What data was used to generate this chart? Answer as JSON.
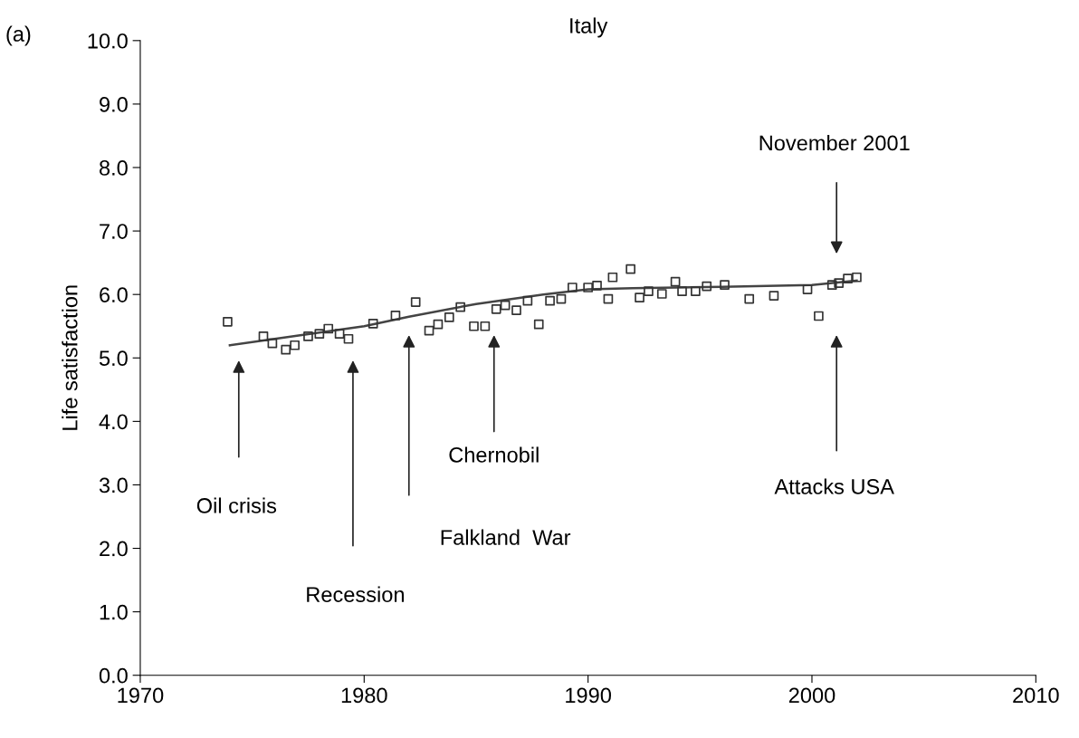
{
  "chart_data": {
    "type": "scatter",
    "title": "Italy",
    "ylabel": "Life satisfaction",
    "xlim": [
      1970,
      2010
    ],
    "xticks": [
      1970,
      1980,
      1990,
      2000,
      2010
    ],
    "ylim": [
      0,
      10
    ],
    "yticks": [
      {
        "value": 0,
        "label": "0.0"
      },
      {
        "value": 1,
        "label": "1.0"
      },
      {
        "value": 2,
        "label": "2.0"
      },
      {
        "value": 3,
        "label": "3.0"
      },
      {
        "value": 4,
        "label": "4.0"
      },
      {
        "value": 5,
        "label": "5.0"
      },
      {
        "value": 6,
        "label": "6.0"
      },
      {
        "value": 7,
        "label": "7.0"
      },
      {
        "value": 8,
        "label": "8.0"
      },
      {
        "value": 9,
        "label": "9.0"
      },
      {
        "value": 10,
        "label": "10.0"
      }
    ],
    "grid": false,
    "legend": false,
    "series": [
      {
        "marker": "square",
        "color": "#333333",
        "x": [
          1973.9,
          1975.5,
          1975.9,
          1976.5,
          1976.9,
          1977.5,
          1978.0,
          1978.4,
          1978.9,
          1979.3,
          1980.4,
          1981.4,
          1982.3,
          1982.9,
          1983.3,
          1983.8,
          1984.3,
          1984.9,
          1985.4,
          1985.9,
          1986.3,
          1986.8,
          1987.3,
          1987.8,
          1988.3,
          1988.8,
          1989.3,
          1990.0,
          1990.4,
          1990.9,
          1991.1,
          1991.9,
          1992.3,
          1992.7,
          1993.3,
          1993.9,
          1994.2,
          1994.8,
          1995.3,
          1996.1,
          1997.2,
          1998.3,
          1999.8,
          2000.3,
          2000.9,
          2001.2,
          2001.6,
          2002.0
        ],
        "values": [
          5.57,
          5.34,
          5.23,
          5.13,
          5.2,
          5.34,
          5.38,
          5.46,
          5.38,
          5.3,
          5.54,
          5.67,
          5.88,
          5.43,
          5.53,
          5.64,
          5.8,
          5.5,
          5.5,
          5.77,
          5.83,
          5.75,
          5.9,
          5.53,
          5.9,
          5.93,
          6.11,
          6.11,
          6.14,
          5.93,
          6.27,
          6.4,
          5.95,
          6.05,
          6.01,
          6.2,
          6.05,
          6.05,
          6.13,
          6.15,
          5.93,
          5.98,
          6.08,
          5.66,
          6.15,
          6.18,
          6.25,
          6.27
        ]
      },
      {
        "type": "line",
        "marker": "none",
        "line_style": "solid",
        "color": "#444444",
        "x": [
          1974,
          1977,
          1980,
          1982,
          1985,
          1988,
          1990,
          1992,
          1996,
          2000,
          2002
        ],
        "values": [
          5.2,
          5.35,
          5.5,
          5.65,
          5.85,
          6.0,
          6.08,
          6.1,
          6.12,
          6.15,
          6.22
        ]
      }
    ],
    "annotations": [
      "(a)",
      "Oil crisis",
      "Recession",
      "Falkland  War",
      "Chernobil",
      "Attacks USA",
      "November 2001"
    ]
  }
}
